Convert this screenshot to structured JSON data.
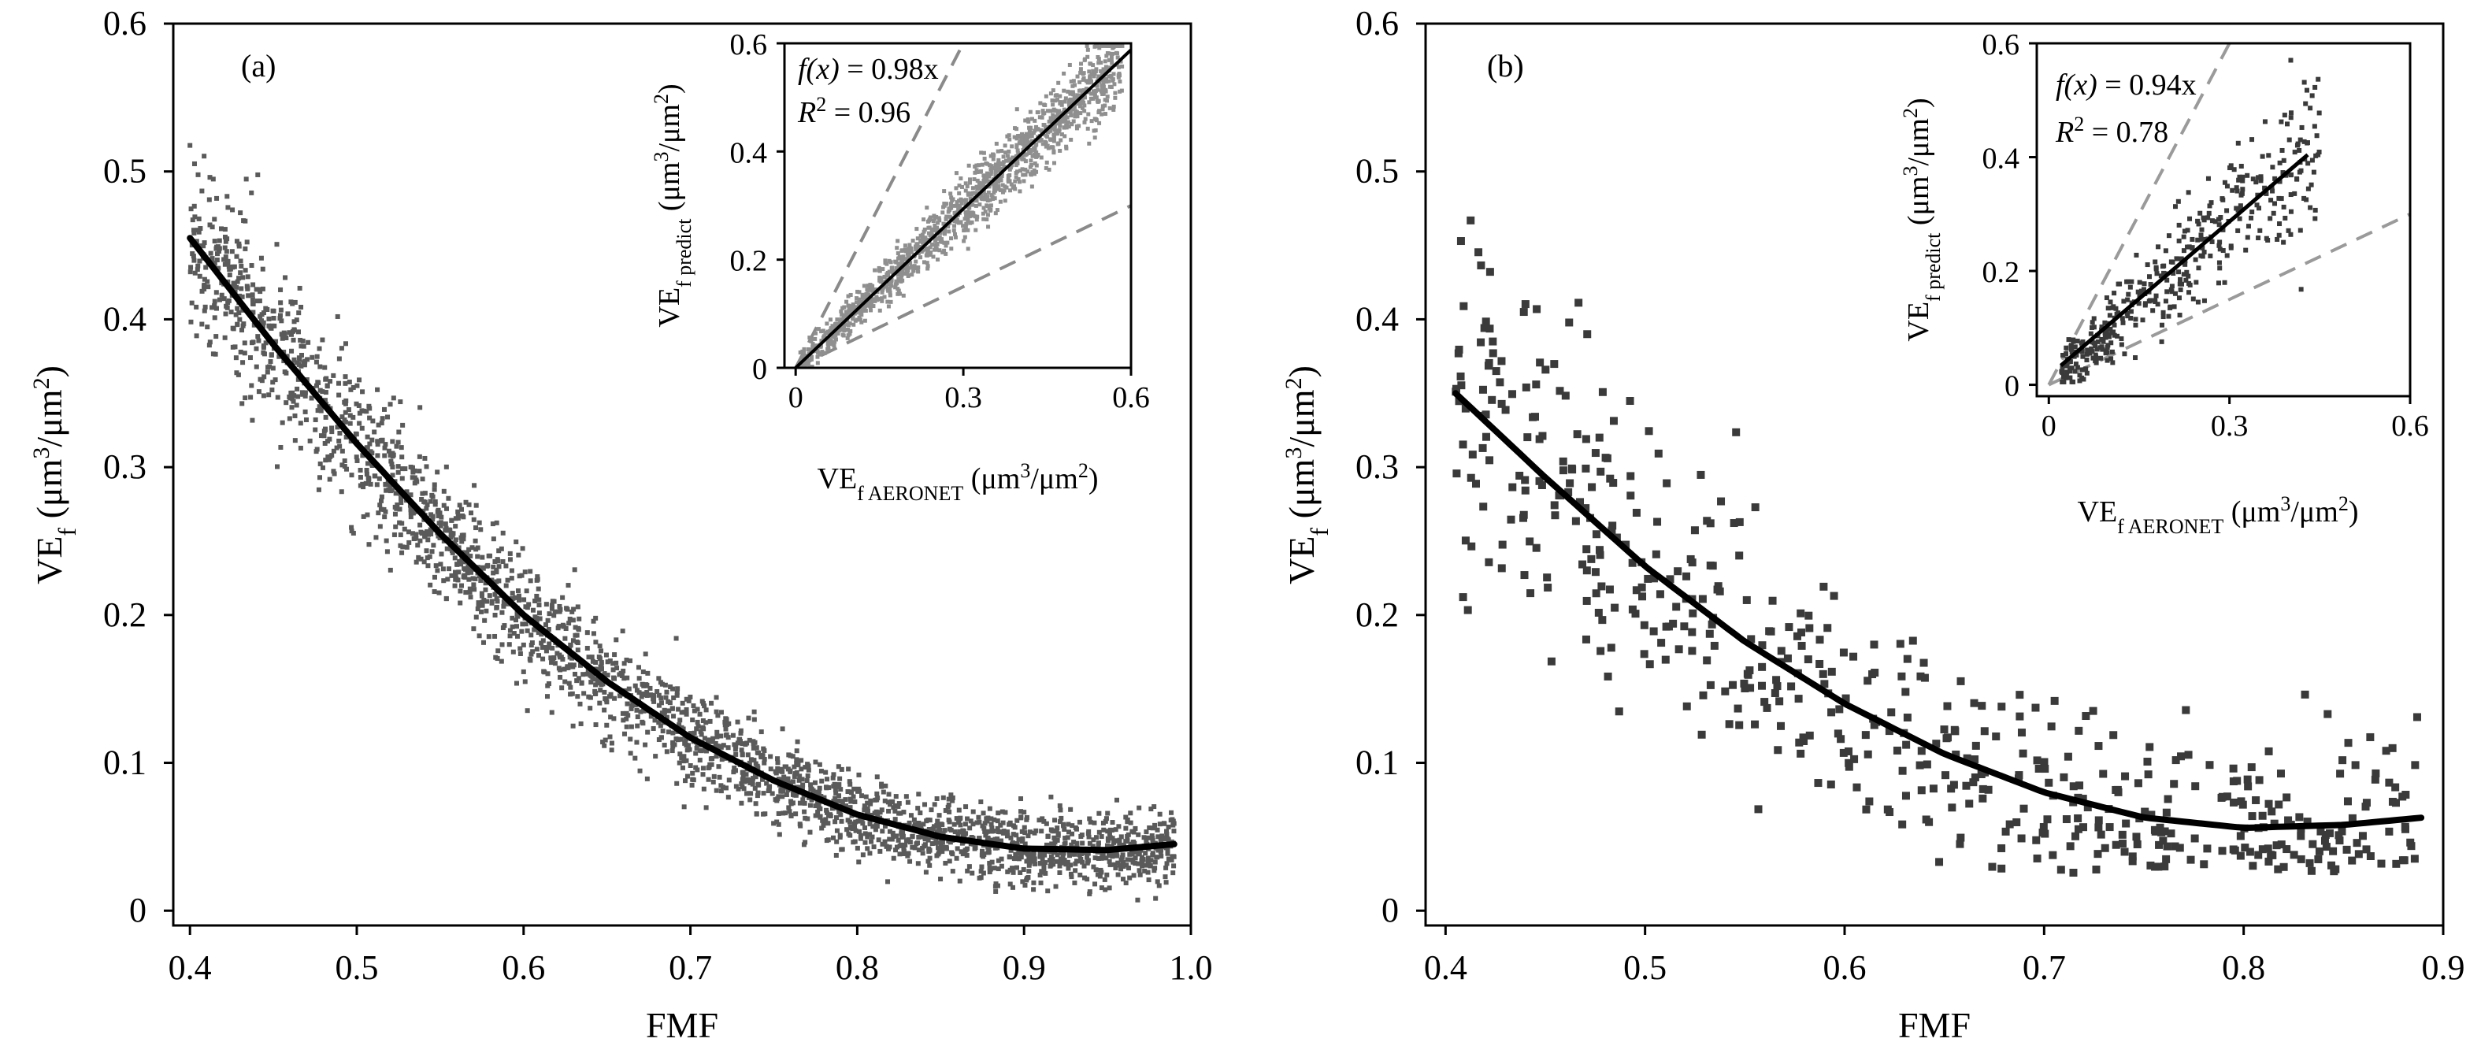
{
  "chart_data": [
    {
      "type": "scatter",
      "panel_label": "(a)",
      "xlabel": "FMF",
      "ylabel_main": "VE",
      "ylabel_sub": "f",
      "ylabel_unit_pre": " (μm",
      "ylabel_unit_sup1": "3",
      "ylabel_unit_mid": "/μm",
      "ylabel_unit_sup2": "2",
      "ylabel_unit_post": ")",
      "xlim": [
        0.39,
        1.0
      ],
      "ylim": [
        -0.01,
        0.6
      ],
      "xticks": [
        "0.4",
        "0.5",
        "0.6",
        "0.7",
        "0.8",
        "0.9",
        "1.0"
      ],
      "xtick_values": [
        0.4,
        0.5,
        0.6,
        0.7,
        0.8,
        0.9,
        1.0
      ],
      "yticks": [
        "0",
        "0.1",
        "0.2",
        "0.3",
        "0.4",
        "0.5",
        "0.6"
      ],
      "ytick_values": [
        0,
        0.1,
        0.2,
        0.3,
        0.4,
        0.5,
        0.6
      ],
      "point_color": "#5a5a5a",
      "fit_curve": {
        "x": [
          0.4,
          0.45,
          0.5,
          0.55,
          0.6,
          0.65,
          0.7,
          0.75,
          0.8,
          0.85,
          0.9,
          0.95,
          0.99
        ],
        "y": [
          0.455,
          0.383,
          0.316,
          0.255,
          0.2,
          0.155,
          0.117,
          0.088,
          0.065,
          0.05,
          0.042,
          0.041,
          0.045
        ]
      },
      "inset": {
        "type": "scatter",
        "equation_lhs": "f(x)",
        "equation_rhs": " = 0.98x",
        "r2_label": "R",
        "r2_sup": "2",
        "r2_value": " = 0.96",
        "slope": 0.98,
        "xlabel_main": "VE",
        "xlabel_sub": "f AERONET",
        "ylabel_main": "VE",
        "ylabel_sub": "f predict",
        "unit_pre": " (μm",
        "unit_sup1": "3",
        "unit_mid": "/μm",
        "unit_sup2": "2",
        "unit_post": ")",
        "xlim": [
          -0.02,
          0.6
        ],
        "ylim": [
          0,
          0.6
        ],
        "xticks": [
          "0",
          "0.3",
          "0.6"
        ],
        "xtick_values": [
          0,
          0.3,
          0.6
        ],
        "yticks": [
          "0",
          "0.2",
          "0.4",
          "0.6"
        ],
        "ytick_values": [
          0,
          0.2,
          0.4,
          0.6
        ],
        "reference_lines_slopes": [
          2.0,
          0.5
        ],
        "point_color": "#8f8f8f"
      }
    },
    {
      "type": "scatter",
      "panel_label": "(b)",
      "xlabel": "FMF",
      "ylabel_main": "VE",
      "ylabel_sub": "f",
      "ylabel_unit_pre": " (μm",
      "ylabel_unit_sup1": "3",
      "ylabel_unit_mid": "/μm",
      "ylabel_unit_sup2": "2",
      "ylabel_unit_post": ")",
      "xlim": [
        0.39,
        0.9
      ],
      "ylim": [
        -0.01,
        0.6
      ],
      "xticks": [
        "0.4",
        "0.5",
        "0.6",
        "0.7",
        "0.8",
        "0.9"
      ],
      "xtick_values": [
        0.4,
        0.5,
        0.6,
        0.7,
        0.8,
        0.9
      ],
      "yticks": [
        "0",
        "0.1",
        "0.2",
        "0.3",
        "0.4",
        "0.5",
        "0.6"
      ],
      "ytick_values": [
        0,
        0.1,
        0.2,
        0.3,
        0.4,
        0.5,
        0.6
      ],
      "point_color": "#3a3a3a",
      "fit_curve": {
        "x": [
          0.405,
          0.45,
          0.5,
          0.55,
          0.6,
          0.65,
          0.7,
          0.75,
          0.8,
          0.85,
          0.89
        ],
        "y": [
          0.35,
          0.293,
          0.233,
          0.182,
          0.14,
          0.106,
          0.08,
          0.063,
          0.056,
          0.058,
          0.063
        ]
      },
      "inset": {
        "type": "scatter",
        "equation_lhs": "f(x)",
        "equation_rhs": " = 0.94x",
        "r2_label": "R",
        "r2_sup": "2",
        "r2_value": " = 0.78",
        "slope": 0.94,
        "xlabel_main": "VE",
        "xlabel_sub": "f AERONET",
        "ylabel_main": "VE",
        "ylabel_sub": "f predict",
        "unit_pre": " (μm",
        "unit_sup1": "3",
        "unit_mid": "/μm",
        "unit_sup2": "2",
        "unit_post": ")",
        "xlim": [
          -0.02,
          0.6
        ],
        "ylim": [
          -0.02,
          0.6
        ],
        "xticks": [
          "0",
          "0.3",
          "0.6"
        ],
        "xtick_values": [
          0,
          0.3,
          0.6
        ],
        "yticks": [
          "0",
          "0.2",
          "0.4",
          "0.6"
        ],
        "ytick_values": [
          0,
          0.2,
          0.4,
          0.6
        ],
        "reference_lines_slopes": [
          2.0,
          0.5
        ],
        "point_color": "#3a3a3a"
      }
    }
  ]
}
